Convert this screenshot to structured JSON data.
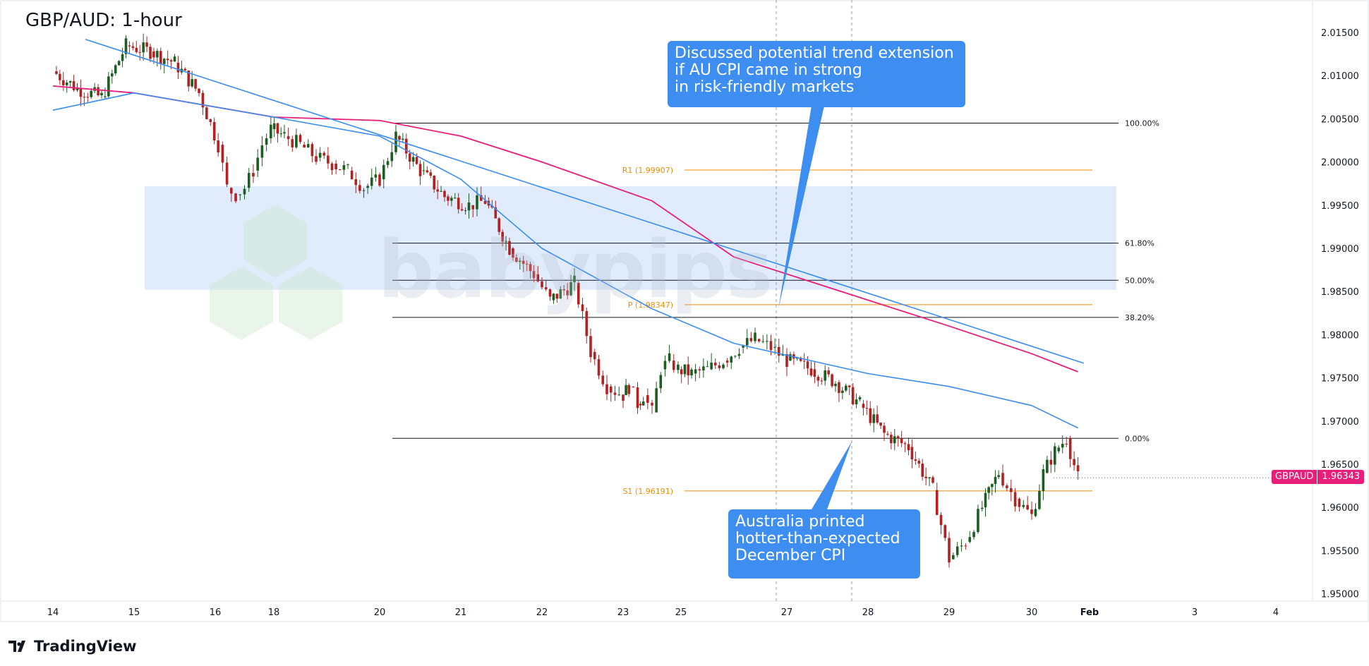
{
  "title": "GBP/AUD: 1-hour",
  "brand": "TradingView",
  "watermark": "babypips",
  "colors": {
    "bull": "#26a69a",
    "bull_body": "#1b5e20",
    "bear": "#b22222",
    "ma_fast": "#3a8df0",
    "ma_slow": "#e91e7a",
    "trendline": "#3a8df0",
    "zone": "#cfe2fb",
    "pivot": "#f28c00",
    "fib": "#131722",
    "callout": "#3d8ef0"
  },
  "callouts": {
    "top": "Discussed potential trend extension\nif AU CPI came in strong\nin risk-friendly markets",
    "bottom": "Australia printed\nhotter-than-expected\nDecember CPI"
  },
  "price_badge": {
    "symbol": "GBPAUD",
    "value": "1.96343"
  },
  "chart_data": {
    "type": "candlestick",
    "title": "GBP/AUD: 1-hour",
    "y_ticks": [
      "2.01500",
      "2.01000",
      "2.00500",
      "2.00000",
      "1.99500",
      "1.99000",
      "1.98500",
      "1.98000",
      "1.97500",
      "1.97000",
      "1.96500",
      "1.96000",
      "1.95500",
      "1.95000"
    ],
    "x_ticks": [
      "14",
      "15",
      "16",
      "18",
      "20",
      "21",
      "22",
      "23",
      "25",
      "27",
      "28",
      "29",
      "30",
      "Feb",
      "3",
      "4"
    ],
    "ylim": [
      1.949,
      2.019
    ],
    "fib_levels": [
      {
        "label": "100.00%",
        "value": 2.0045
      },
      {
        "label": "61.80%",
        "value": 1.9906
      },
      {
        "label": "50.00%",
        "value": 1.9863
      },
      {
        "label": "38.20%",
        "value": 1.982
      },
      {
        "label": "0.00%",
        "value": 1.968
      }
    ],
    "pivots": [
      {
        "label": "R1 (1.99907)",
        "value": 1.99907
      },
      {
        "label": "P (1.98347)",
        "value": 1.98347
      },
      {
        "label": "S1 (1.96191)",
        "value": 1.96191
      }
    ],
    "zone": [
      1.9852,
      1.9972
    ],
    "last_price": 1.96343,
    "ohlc_close_path": [
      [
        14,
        2.0105
      ],
      [
        14.3,
        2.0085
      ],
      [
        14.6,
        2.0075
      ],
      [
        14.9,
        2.0135
      ],
      [
        15.2,
        2.0128
      ],
      [
        15.5,
        2.0115
      ],
      [
        15.8,
        2.008
      ],
      [
        16.1,
        2.002
      ],
      [
        16.4,
        1.997
      ],
      [
        16.7,
        1.9962
      ],
      [
        17.0,
        1.997
      ],
      [
        17.3,
        1.999
      ],
      [
        17.6,
        2.002
      ],
      [
        17.9,
        2.0038
      ],
      [
        18.2,
        2.003
      ],
      [
        18.5,
        2.002
      ],
      [
        18.8,
        2.0005
      ],
      [
        19.1,
        1.9998
      ],
      [
        19.4,
        1.999
      ],
      [
        19.7,
        1.997
      ],
      [
        20.0,
        1.998
      ],
      [
        20.2,
        2.003
      ],
      [
        20.5,
        1.999
      ],
      [
        20.8,
        1.996
      ],
      [
        21.1,
        1.995
      ],
      [
        21.3,
        1.9955
      ],
      [
        21.6,
        1.99
      ],
      [
        21.9,
        1.987
      ],
      [
        22.1,
        1.984
      ],
      [
        22.4,
        1.986
      ],
      [
        22.6,
        1.978
      ],
      [
        22.8,
        1.974
      ],
      [
        23.0,
        1.973
      ],
      [
        23.2,
        1.974
      ],
      [
        23.5,
        1.972
      ],
      [
        23.7,
        1.973
      ],
      [
        24.0,
        1.971
      ],
      [
        24.3,
        1.976
      ],
      [
        24.6,
        1.977
      ],
      [
        24.9,
        1.976
      ],
      [
        25.2,
        1.9755
      ],
      [
        25.5,
        1.976
      ],
      [
        25.8,
        1.977
      ],
      [
        26.1,
        1.9785
      ],
      [
        26.4,
        1.9795
      ],
      [
        26.7,
        1.9785
      ],
      [
        27.0,
        1.977
      ],
      [
        27.3,
        1.976
      ],
      [
        27.6,
        1.9745
      ],
      [
        27.9,
        1.972
      ],
      [
        28.2,
        1.9685
      ],
      [
        28.5,
        1.967
      ],
      [
        28.8,
        1.962
      ],
      [
        29.0,
        1.954
      ],
      [
        29.2,
        1.956
      ],
      [
        29.4,
        1.96
      ],
      [
        29.6,
        1.964
      ],
      [
        29.8,
        1.961
      ],
      [
        30.0,
        1.959
      ],
      [
        30.2,
        1.964
      ],
      [
        30.4,
        1.9665
      ],
      [
        30.6,
        1.968
      ],
      [
        30.8,
        1.9634
      ]
    ],
    "series": [
      {
        "name": "MA fast",
        "values": [
          [
            14,
            2.006
          ],
          [
            15,
            2.008
          ],
          [
            18,
            2.0052
          ],
          [
            20,
            2.003
          ],
          [
            21,
            1.998
          ],
          [
            22,
            1.99
          ],
          [
            24,
            1.983
          ],
          [
            26,
            1.979
          ],
          [
            28,
            1.9755
          ],
          [
            29,
            1.974
          ],
          [
            30,
            1.9718
          ],
          [
            30.8,
            1.9692
          ]
        ]
      },
      {
        "name": "MA slow",
        "values": [
          [
            14,
            2.0088
          ],
          [
            15,
            2.008
          ],
          [
            18,
            2.0052
          ],
          [
            20,
            2.0048
          ],
          [
            21,
            2.003
          ],
          [
            22,
            2.0
          ],
          [
            24,
            1.9955
          ],
          [
            26,
            1.989
          ],
          [
            28,
            1.984
          ],
          [
            29,
            1.981
          ],
          [
            30,
            1.9778
          ],
          [
            30.8,
            1.9757
          ]
        ]
      },
      {
        "name": "Trendline",
        "values": [
          [
            14.4,
            2.0142
          ],
          [
            30.9,
            1.9767
          ]
        ]
      }
    ]
  }
}
